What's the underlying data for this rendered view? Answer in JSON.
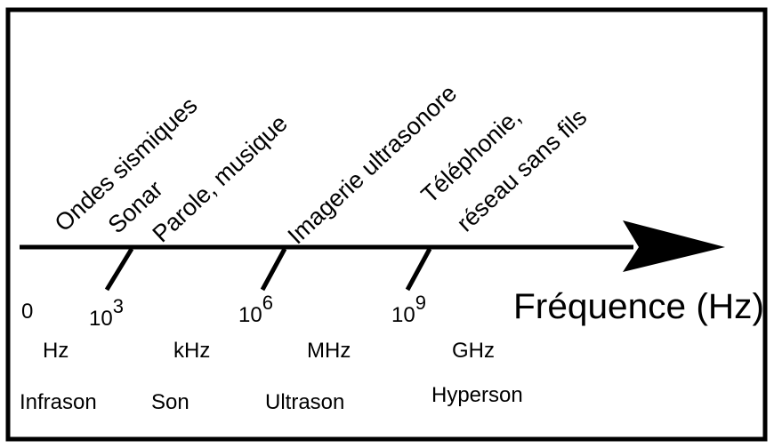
{
  "labels": [
    "Ondes sismiques",
    "Sonar",
    "Parole, musique",
    "Imagerie ultrasonore",
    "Téléphonie,",
    "réseau sans fils"
  ],
  "axis": {
    "title": "Fréquence (Hz)",
    "origin": "0",
    "ticks": [
      {
        "base": "10",
        "exp": "3"
      },
      {
        "base": "10",
        "exp": "6"
      },
      {
        "base": "10",
        "exp": "9"
      }
    ]
  },
  "units": [
    "Hz",
    "kHz",
    "MHz",
    "GHz"
  ],
  "domains": [
    "Infrason",
    "Son",
    "Ultrason",
    "Hyperson"
  ]
}
